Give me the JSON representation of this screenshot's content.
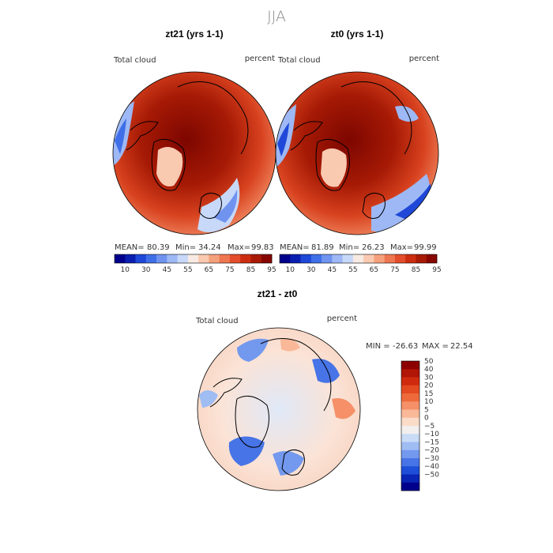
{
  "page_title": "JJA",
  "chart_data": [
    {
      "type": "heatmap",
      "projection": "north polar stereographic",
      "title": "zt21 (yrs 1-1)",
      "field_label": "Total cloud",
      "units": "percent",
      "stats": {
        "mean_label": "MEAN=",
        "mean": "80.39",
        "min_label": "Min=",
        "min": "34.24",
        "max_label": "Max=",
        "max": "99.83"
      },
      "colorbar": {
        "orientation": "horizontal",
        "levels": [
          10,
          30,
          45,
          55,
          65,
          75,
          85,
          95
        ],
        "tick_labels": [
          "10",
          "30",
          "45",
          "55",
          "65",
          "75",
          "85",
          "95"
        ],
        "colors": [
          "#00008c",
          "#0a1fb0",
          "#1f48d8",
          "#3f6fe8",
          "#6f93ef",
          "#9db8f5",
          "#c7d8f8",
          "#f7eae2",
          "#f9c9b0",
          "#f5a07c",
          "#ee7650",
          "#e34d2b",
          "#cc2d10",
          "#a81a05",
          "#870700"
        ]
      }
    },
    {
      "type": "heatmap",
      "projection": "north polar stereographic",
      "title": "zt0 (yrs 1-1)",
      "field_label": "Total cloud",
      "units": "percent",
      "stats": {
        "mean_label": "MEAN=",
        "mean": "81.89",
        "min_label": "Min=",
        "min": "26.23",
        "max_label": "Max=",
        "max": "99.99"
      },
      "colorbar": {
        "orientation": "horizontal",
        "levels": [
          10,
          30,
          45,
          55,
          65,
          75,
          85,
          95
        ],
        "tick_labels": [
          "10",
          "30",
          "45",
          "55",
          "65",
          "75",
          "85",
          "95"
        ],
        "colors": [
          "#00008c",
          "#0a1fb0",
          "#1f48d8",
          "#3f6fe8",
          "#6f93ef",
          "#9db8f5",
          "#c7d8f8",
          "#f7eae2",
          "#f9c9b0",
          "#f5a07c",
          "#ee7650",
          "#e34d2b",
          "#cc2d10",
          "#a81a05",
          "#870700"
        ]
      }
    },
    {
      "type": "heatmap",
      "projection": "north polar stereographic",
      "title": "zt21 - zt0",
      "field_label": "Total cloud",
      "units": "percent",
      "stats": {
        "min_label": "MIN =",
        "min": "-26.63",
        "max_label": "MAX =",
        "max": "22.54"
      },
      "colorbar": {
        "orientation": "vertical",
        "levels": [
          50,
          40,
          30,
          20,
          15,
          10,
          5,
          0,
          -5,
          -10,
          -15,
          -20,
          -30,
          -40,
          -50
        ],
        "tick_labels": [
          "50",
          "40",
          "30",
          "20",
          "15",
          "10",
          "5",
          "0",
          "−5",
          "−10",
          "−15",
          "−20",
          "−30",
          "−40",
          "−50"
        ],
        "colors": [
          "#8c0000",
          "#b01505",
          "#d02a0e",
          "#e34a22",
          "#ee6a3c",
          "#f59068",
          "#f9b898",
          "#fbdcc8",
          "#f2efee",
          "#c9dbf6",
          "#9fbcf3",
          "#7399ee",
          "#4774e6",
          "#1f4fd8",
          "#0a26b4",
          "#00008c"
        ]
      }
    }
  ]
}
